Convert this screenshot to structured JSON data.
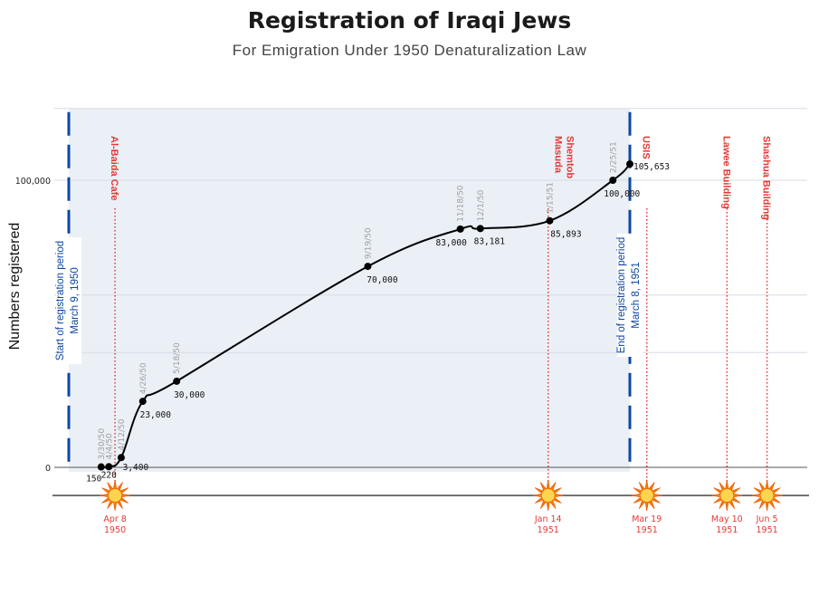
{
  "title": "Registration of Iraqi Jews",
  "subtitle": "For Emigration Under 1950 Denaturalization Law",
  "chart_data": {
    "type": "line",
    "title": "Registration of Iraqi Jews",
    "subtitle": "For Emigration Under 1950 Denaturalization Law",
    "xlabel": "",
    "ylabel": "Numbers registered",
    "x_range": [
      "1950-03-01",
      "1951-06-20"
    ],
    "ylim": [
      0,
      125000
    ],
    "y_ticks": [
      0,
      100000
    ],
    "y_tick_labels": [
      "0",
      "100,000"
    ],
    "grid": true,
    "series": [
      {
        "x": [
          "1950-03-30",
          "1950-04-04",
          "1950-04-12",
          "1950-04-26",
          "1950-05-18",
          "1950-09-19",
          "1950-11-18",
          "1950-12-01",
          "1951-01-15",
          "1951-02-25",
          "1951-03-08"
        ],
        "x_labels": [
          "3/30/50",
          "4/4/50",
          "4/12/50",
          "4/26/50",
          "5/18/50",
          "9/19/50",
          "11/18/50",
          "12/1/50",
          "1/15/51",
          "2/25/51",
          ""
        ],
        "values": [
          150,
          220,
          3400,
          23000,
          30000,
          70000,
          83000,
          83181,
          85893,
          100000,
          105653
        ],
        "value_labels": [
          "150",
          "220",
          "3,400",
          "23,000",
          "30,000",
          "70,000",
          "83,000",
          "83,181",
          "85,893",
          "100,000",
          "105,653"
        ]
      }
    ],
    "period": {
      "start": "1950-03-09",
      "end": "1951-03-08",
      "start_label": [
        "Start of registration period",
        "March 9, 1950"
      ],
      "end_label": [
        "End of registration period",
        "March 8, 1951"
      ],
      "color": "#0d47a1",
      "fill": "#ebf0f7"
    },
    "events": [
      {
        "name": "Al-Baida Cafe",
        "date": "1950-04-08",
        "date_label": [
          "Apr 8",
          "1950"
        ]
      },
      {
        "name": "Masuda Shemtob",
        "date": "1951-01-14",
        "date_label": [
          "Jan 14",
          "1951"
        ]
      },
      {
        "name": "USIS",
        "date": "1951-03-19",
        "date_label": [
          "Mar 19",
          "1951"
        ]
      },
      {
        "name": "Lawee Building",
        "date": "1951-05-10",
        "date_label": [
          "May 10",
          "1951"
        ]
      },
      {
        "name": "Shashua Building",
        "date": "1951-06-05",
        "date_label": [
          "Jun 5",
          "1951"
        ]
      }
    ],
    "event_color": "#e53935",
    "line_color": "#000000",
    "x_label_color": "#9e9e9e"
  }
}
